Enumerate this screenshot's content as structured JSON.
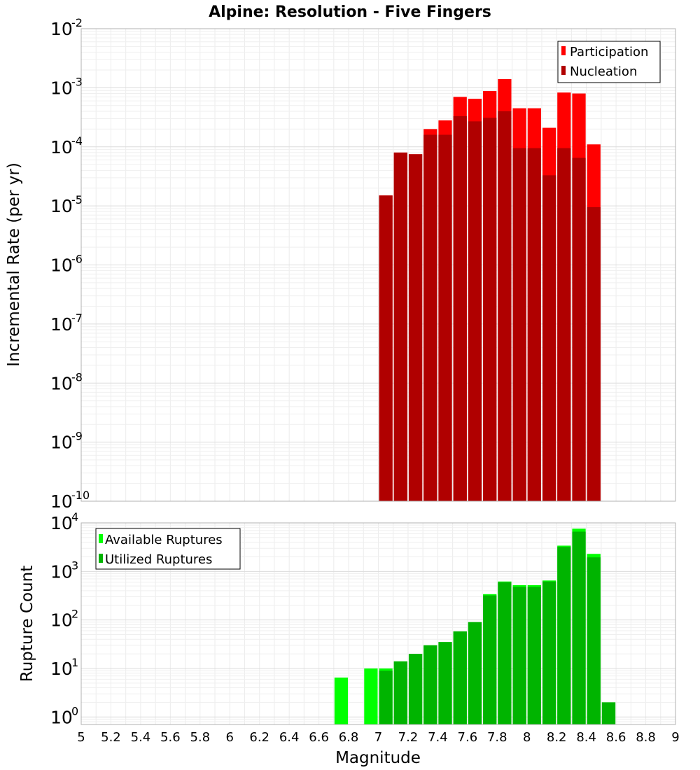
{
  "chart_data": [
    {
      "type": "bar",
      "title": "Alpine: Resolution - Five Fingers",
      "ylabel": "Incremental Rate (per yr)",
      "xlabel": "",
      "xlim": [
        5,
        9
      ],
      "ylim": [
        1e-10,
        0.01
      ],
      "yscale": "log",
      "y_ticks_exp": [
        -10,
        -9,
        -8,
        -7,
        -6,
        -5,
        -4,
        -3,
        -2
      ],
      "grid": true,
      "legend_placement": "top-right",
      "bin_width": 0.1,
      "x": [
        7.05,
        7.15,
        7.25,
        7.35,
        7.45,
        7.55,
        7.65,
        7.75,
        7.85,
        7.95,
        8.05,
        8.15,
        8.25,
        8.35,
        8.45
      ],
      "series": [
        {
          "name": "Participation",
          "color": "#ff0000",
          "values": [
            1.5e-05,
            8e-05,
            7.5e-05,
            0.0002,
            0.00028,
            0.0007,
            0.00065,
            0.00088,
            0.0014,
            0.00045,
            0.00045,
            0.00021,
            0.00083,
            0.0008,
            0.00011
          ]
        },
        {
          "name": "Nucleation",
          "color": "#b00000",
          "values": [
            1.5e-05,
            8e-05,
            7.5e-05,
            0.00016,
            0.00016,
            0.00033,
            0.00027,
            0.00031,
            0.0004,
            9.5e-05,
            9.5e-05,
            3.3e-05,
            9.5e-05,
            6.5e-05,
            9.5e-06
          ]
        }
      ]
    },
    {
      "type": "bar",
      "title": "",
      "ylabel": "Rupture Count",
      "xlabel": "Magnitude",
      "xlim": [
        5,
        9
      ],
      "ylim": [
        0.7,
        10000
      ],
      "yscale": "log",
      "y_ticks_exp": [
        0,
        1,
        2,
        3,
        4
      ],
      "x_ticks": [
        "5",
        "5.2",
        "5.4",
        "5.6",
        "5.8",
        "6",
        "6.2",
        "6.4",
        "6.6",
        "6.8",
        "7",
        "7.2",
        "7.4",
        "7.6",
        "7.8",
        "8",
        "8.2",
        "8.4",
        "8.6",
        "8.8",
        "9"
      ],
      "grid": true,
      "legend_placement": "top-left",
      "bin_width": 0.1,
      "x": [
        6.75,
        6.85,
        6.95,
        7.05,
        7.15,
        7.25,
        7.35,
        7.45,
        7.55,
        7.65,
        7.75,
        7.85,
        7.95,
        8.05,
        8.15,
        8.25,
        8.35,
        8.45,
        8.55
      ],
      "series": [
        {
          "name": "Available Ruptures",
          "color": "#00ff00",
          "values": [
            6.5,
            0,
            10,
            10,
            14,
            20,
            30,
            35,
            58,
            90,
            340,
            620,
            520,
            520,
            650,
            3400,
            7600,
            2300,
            2
          ]
        },
        {
          "name": "Utilized Ruptures",
          "color": "#00b400",
          "values": [
            0,
            0,
            0,
            9,
            14,
            20,
            30,
            35,
            58,
            90,
            320,
            600,
            480,
            480,
            620,
            3200,
            6600,
            1950,
            2
          ]
        }
      ]
    }
  ]
}
